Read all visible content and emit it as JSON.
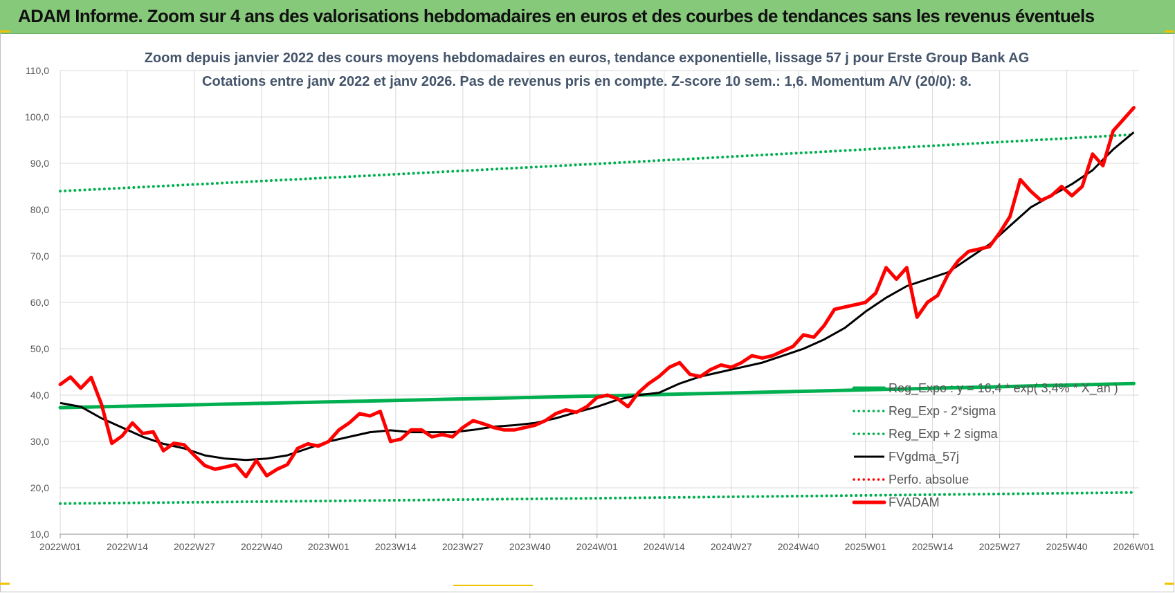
{
  "header": {
    "title": "ADAM Informe. Zoom sur 4 ans des valorisations hebdomadaires en euros et des courbes de tendances sans les revenus éventuels"
  },
  "colors": {
    "banner": "#86c97a",
    "trend_green": "#00b050",
    "price_red": "#ff0000",
    "moving_average_black": "#000000",
    "corner_accent": "#f2c200"
  },
  "chart_data": {
    "type": "line",
    "title": "Zoom depuis janvier 2022 des cours moyens hebdomadaires en euros, tendance exponentielle, lissage 57 j pour Erste Group Bank AG",
    "subtitle": "Cotations entre janv 2022 et janv 2026. Pas de revenus pris en compte. Z-score 10 sem.: 1,6. Momentum A/V (20/0): 8.",
    "xlabel": "",
    "ylabel": "",
    "ylim": [
      10,
      110
    ],
    "yticks": [
      "10,0",
      "20,0",
      "30,0",
      "40,0",
      "50,0",
      "60,0",
      "70,0",
      "80,0",
      "90,0",
      "100,0",
      "110,0"
    ],
    "xlim": [
      0,
      209
    ],
    "xticks": [
      {
        "label": "2022W01",
        "index": 0
      },
      {
        "label": "2022W14",
        "index": 13
      },
      {
        "label": "2022W27",
        "index": 26
      },
      {
        "label": "2022W40",
        "index": 39
      },
      {
        "label": "2023W01",
        "index": 52
      },
      {
        "label": "2023W14",
        "index": 65
      },
      {
        "label": "2023W27",
        "index": 78
      },
      {
        "label": "2023W40",
        "index": 91
      },
      {
        "label": "2024W01",
        "index": 104
      },
      {
        "label": "2024W14",
        "index": 117
      },
      {
        "label": "2024W27",
        "index": 130
      },
      {
        "label": "2024W40",
        "index": 143
      },
      {
        "label": "2025W01",
        "index": 156
      },
      {
        "label": "2025W14",
        "index": 169
      },
      {
        "label": "2025W27",
        "index": 182
      },
      {
        "label": "2025W40",
        "index": 195
      },
      {
        "label": "2026W01",
        "index": 208
      }
    ],
    "grid": true,
    "legend_position": "bottom-right",
    "series": [
      {
        "name": "Reg_Expo : y = 16,4 * exp( 3,4% * X_an )",
        "style": "solid-thick",
        "color": "#00b050",
        "x": [
          0,
          208
        ],
        "y": [
          37.3,
          42.5
        ],
        "shape": "exponential"
      },
      {
        "name": "Reg_Exp - 2*sigma",
        "style": "dotted",
        "color": "#00b050",
        "x": [
          0,
          208
        ],
        "y": [
          16.6,
          19.0
        ],
        "shape": "exponential"
      },
      {
        "name": "Reg_Exp + 2 sigma",
        "style": "dotted",
        "color": "#00b050",
        "x": [
          0,
          208
        ],
        "y": [
          84.0,
          96.2
        ],
        "shape": "exponential"
      },
      {
        "name": "FVgdma_57j",
        "style": "solid",
        "color": "#000000",
        "x": [
          0,
          4,
          8,
          12,
          16,
          20,
          24,
          28,
          32,
          36,
          40,
          44,
          48,
          52,
          56,
          60,
          64,
          68,
          72,
          76,
          80,
          84,
          88,
          92,
          96,
          100,
          104,
          108,
          112,
          116,
          120,
          124,
          128,
          132,
          136,
          140,
          144,
          148,
          152,
          156,
          160,
          164,
          168,
          172,
          176,
          180,
          184,
          188,
          192,
          196,
          200,
          204,
          208
        ],
        "y": [
          38.3,
          37.5,
          35.0,
          33.0,
          31.0,
          29.5,
          28.5,
          27.0,
          26.3,
          26.0,
          26.3,
          27.0,
          28.5,
          30.0,
          31.0,
          32.0,
          32.4,
          32.0,
          32.0,
          32.0,
          32.5,
          33.2,
          33.5,
          34.0,
          35.0,
          36.3,
          37.5,
          39.0,
          40.0,
          40.5,
          42.5,
          44.0,
          45.0,
          46.0,
          47.0,
          48.5,
          50.0,
          52.0,
          54.5,
          58.0,
          61.0,
          63.5,
          65.0,
          66.5,
          69.5,
          72.5,
          76.5,
          80.5,
          83.0,
          85.5,
          88.5,
          93.0,
          96.7
        ]
      },
      {
        "name": "Perfo. absolue",
        "style": "dotted",
        "color": "#ff0000",
        "x": [],
        "y": []
      },
      {
        "name": "FVADAM",
        "style": "solid-thick",
        "color": "#ff0000",
        "x": [
          0,
          2,
          4,
          6,
          8,
          10,
          12,
          14,
          16,
          18,
          20,
          22,
          24,
          26,
          28,
          30,
          32,
          34,
          36,
          38,
          40,
          42,
          44,
          46,
          48,
          50,
          52,
          54,
          56,
          58,
          60,
          62,
          64,
          66,
          68,
          70,
          72,
          74,
          76,
          78,
          80,
          82,
          84,
          86,
          88,
          90,
          92,
          94,
          96,
          98,
          100,
          102,
          104,
          106,
          108,
          110,
          112,
          114,
          116,
          118,
          120,
          122,
          124,
          126,
          128,
          130,
          132,
          134,
          136,
          138,
          140,
          142,
          144,
          146,
          148,
          150,
          152,
          154,
          156,
          158,
          160,
          162,
          164,
          166,
          168,
          170,
          172,
          174,
          176,
          178,
          180,
          182,
          184,
          186,
          188,
          190,
          192,
          194,
          196,
          198,
          200,
          202,
          204,
          206,
          208
        ],
        "y": [
          42.3,
          43.9,
          41.5,
          43.8,
          38.0,
          29.6,
          31.2,
          34.0,
          31.7,
          32.1,
          28.0,
          29.6,
          29.3,
          27.0,
          24.8,
          24.0,
          24.5,
          25.0,
          22.4,
          25.9,
          22.6,
          24.0,
          25.0,
          28.5,
          29.5,
          29.0,
          30.0,
          32.5,
          34.0,
          36.0,
          35.5,
          36.5,
          30.0,
          30.5,
          32.5,
          32.5,
          31.0,
          31.5,
          31.0,
          33.0,
          34.5,
          33.8,
          33.0,
          32.5,
          32.5,
          33.0,
          33.5,
          34.5,
          36.0,
          36.8,
          36.3,
          37.5,
          39.5,
          40.0,
          39.2,
          37.5,
          40.5,
          42.5,
          44.0,
          46.0,
          47.0,
          44.5,
          44.0,
          45.5,
          46.5,
          46.0,
          47.0,
          48.5,
          48.0,
          48.5,
          49.5,
          50.5,
          53.0,
          52.5,
          55.0,
          58.5,
          59.0,
          59.5,
          60.0,
          62.0,
          67.5,
          65.0,
          67.5,
          56.8,
          60.0,
          61.5,
          66.0,
          69.0,
          71.0,
          71.5,
          72.0,
          75.0,
          78.5,
          86.5,
          84.0,
          82.0,
          83.0,
          85.0,
          83.0,
          85.0,
          92.0,
          89.5,
          97.0,
          99.5,
          102.0
        ]
      }
    ]
  }
}
